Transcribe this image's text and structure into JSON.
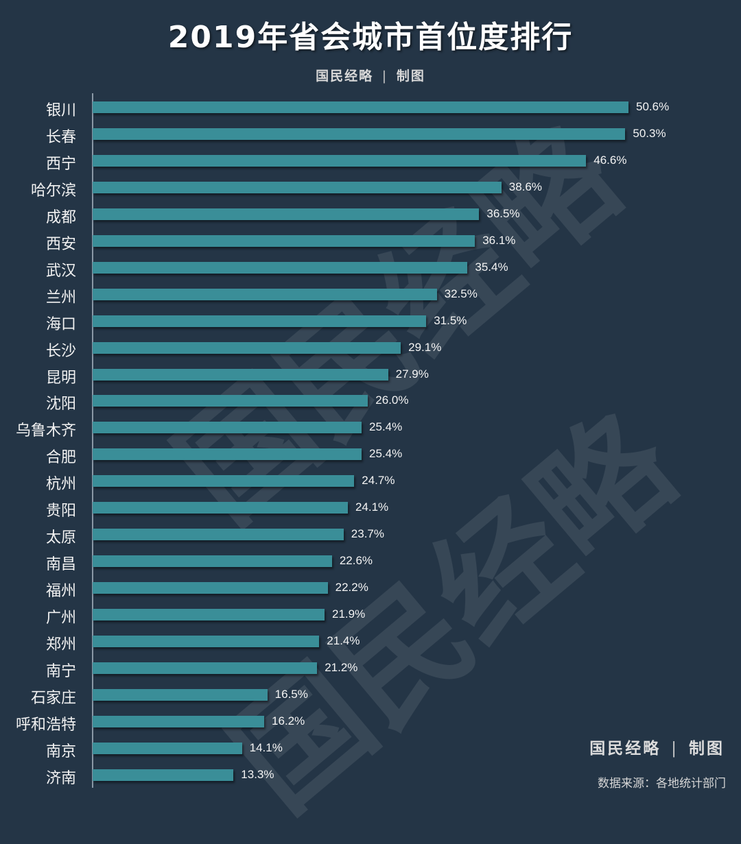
{
  "header": {
    "title": "2019年省会城市首位度排行",
    "credit_org": "国民经略",
    "credit_sep": "|",
    "credit_role": "制图"
  },
  "footer": {
    "credit_org": "国民经略",
    "credit_sep": "|",
    "credit_role": "制图",
    "source": "数据来源：各地统计部门"
  },
  "watermark": {
    "text": "国民经略"
  },
  "colors": {
    "background": "#243546",
    "bar": "#3a8e98",
    "text": "#ffffff"
  },
  "chart_data": {
    "type": "bar",
    "orientation": "horizontal",
    "title": "2019年省会城市首位度排行",
    "xlabel": "",
    "ylabel": "",
    "value_suffix": "%",
    "grid": false,
    "legend": null,
    "xlim": [
      0,
      52
    ],
    "categories": [
      "银川",
      "长春",
      "西宁",
      "哈尔滨",
      "成都",
      "西安",
      "武汉",
      "兰州",
      "海口",
      "长沙",
      "昆明",
      "沈阳",
      "乌鲁木齐",
      "合肥",
      "杭州",
      "贵阳",
      "太原",
      "南昌",
      "福州",
      "广州",
      "郑州",
      "南宁",
      "石家庄",
      "呼和浩特",
      "南京",
      "济南"
    ],
    "values": [
      50.6,
      50.3,
      46.6,
      38.6,
      36.5,
      36.1,
      35.4,
      32.5,
      31.5,
      29.1,
      27.9,
      26.0,
      25.4,
      25.4,
      24.7,
      24.1,
      23.7,
      22.6,
      22.2,
      21.9,
      21.4,
      21.2,
      16.5,
      16.2,
      14.1,
      13.3
    ],
    "labels": [
      "50.6%",
      "50.3%",
      "46.6%",
      "38.6%",
      "36.5%",
      "36.1%",
      "35.4%",
      "32.5%",
      "31.5%",
      "29.1%",
      "27.9%",
      "26.0%",
      "25.4%",
      "25.4%",
      "24.7%",
      "24.1%",
      "23.7%",
      "22.6%",
      "22.2%",
      "21.9%",
      "21.4%",
      "21.2%",
      "16.5%",
      "16.2%",
      "14.1%",
      "13.3%"
    ],
    "annotations": [
      "国民经略 | 制图",
      "数据来源：各地统计部门"
    ]
  }
}
